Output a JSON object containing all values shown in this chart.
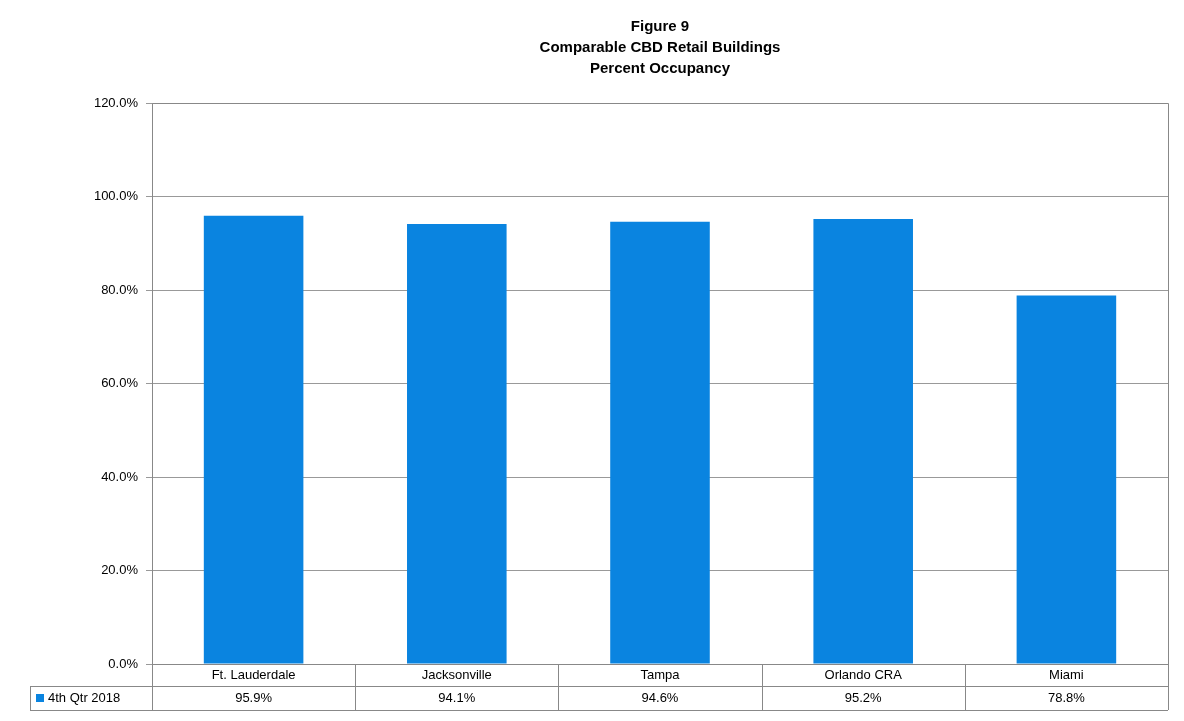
{
  "chart_data": {
    "type": "bar",
    "title": "Figure 9\nComparable CBD Retail Buildings\nPercent Occupancy",
    "categories": [
      "Ft. Lauderdale",
      "Jacksonville",
      "Tampa",
      "Orlando CRA",
      "Miami"
    ],
    "series": [
      {
        "name": "4th Qtr 2018",
        "color": "#0a84e0",
        "values": [
          95.9,
          94.1,
          94.6,
          95.2,
          78.8
        ],
        "value_labels": [
          "95.9%",
          "94.1%",
          "94.6%",
          "95.2%",
          "78.8%"
        ]
      }
    ],
    "ylim": [
      0,
      120
    ],
    "yticks": [
      {
        "value": 0,
        "label": "0.0%"
      },
      {
        "value": 20,
        "label": "20.0%"
      },
      {
        "value": 40,
        "label": "40.0%"
      },
      {
        "value": 60,
        "label": "60.0%"
      },
      {
        "value": 80,
        "label": "80.0%"
      },
      {
        "value": 100,
        "label": "100.0%"
      },
      {
        "value": 120,
        "label": "120.0%"
      }
    ],
    "grid": "y",
    "legend": "bottom"
  }
}
